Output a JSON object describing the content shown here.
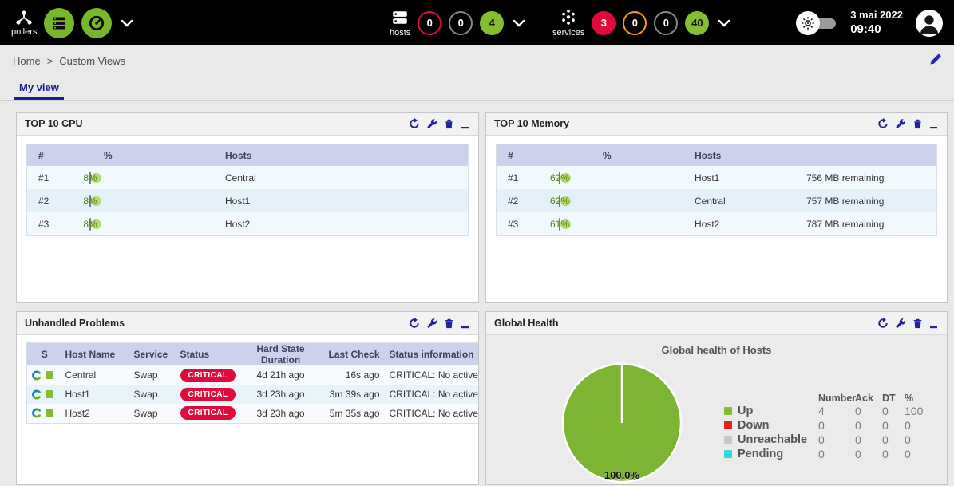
{
  "colors": {
    "green": "#84bd32",
    "pie_green": "#7cb531",
    "light_green": "#b5dc72",
    "red": "#e00b3d",
    "orange": "#ff9a13",
    "navy": "#23229e",
    "cyan": "#33d6da",
    "legend_gray": "#c9c9c9",
    "down_red": "#e01f1f"
  },
  "topbar": {
    "pollers_label": "pollers",
    "hosts_label": "hosts",
    "hosts_badges": [
      {
        "value": "0"
      },
      {
        "value": "0"
      },
      {
        "value": "4"
      }
    ],
    "services_label": "services",
    "services_badges": [
      {
        "value": "3"
      },
      {
        "value": "0"
      },
      {
        "value": "0"
      },
      {
        "value": "40"
      }
    ],
    "date": "3 mai 2022",
    "time": "09:40"
  },
  "breadcrumb": {
    "home": "Home",
    "separator": ">",
    "current": "Custom Views"
  },
  "tab": {
    "label": "My view"
  },
  "cpu": {
    "title": "TOP 10 CPU",
    "col_rank": "#",
    "col_percent": "%",
    "col_hosts": "Hosts",
    "rows": [
      {
        "rank": "#1",
        "percent": 8,
        "percent_label": "8%",
        "host": "Central"
      },
      {
        "rank": "#2",
        "percent": 8,
        "percent_label": "8%",
        "host": "Host1"
      },
      {
        "rank": "#3",
        "percent": 8,
        "percent_label": "8%",
        "host": "Host2"
      }
    ]
  },
  "memory": {
    "title": "TOP 10 Memory",
    "col_rank": "#",
    "col_percent": "%",
    "col_hosts": "Hosts",
    "rows": [
      {
        "rank": "#1",
        "percent": 62,
        "percent_label": "62%",
        "host": "Host1",
        "remaining": "756 MB remaining"
      },
      {
        "rank": "#2",
        "percent": 62,
        "percent_label": "62%",
        "host": "Central",
        "remaining": "757 MB remaining"
      },
      {
        "rank": "#3",
        "percent": 61,
        "percent_label": "61%",
        "host": "Host2",
        "remaining": "787 MB remaining"
      }
    ]
  },
  "problems": {
    "title": "Unhandled Problems",
    "columns": {
      "s": "S",
      "host": "Host Name",
      "service": "Service",
      "status": "Status",
      "duration": "Hard State Duration",
      "last_check": "Last Check",
      "info": "Status information"
    },
    "rows": [
      {
        "host": "Central",
        "service": "Swap",
        "status": "CRITICAL",
        "duration": "4d 21h ago",
        "last_check": "16s ago",
        "info": "CRITICAL: No active swap"
      },
      {
        "host": "Host1",
        "service": "Swap",
        "status": "CRITICAL",
        "duration": "3d 23h ago",
        "last_check": "3m 39s ago",
        "info": "CRITICAL: No active swap"
      },
      {
        "host": "Host2",
        "service": "Swap",
        "status": "CRITICAL",
        "duration": "3d 23h ago",
        "last_check": "5m 35s ago",
        "info": "CRITICAL: No active swap"
      }
    ]
  },
  "health": {
    "title": "Global Health",
    "chart_title": "Global health of Hosts",
    "pie_label": "100.0%",
    "legend_headers": {
      "number": "Number",
      "ack": "Ack",
      "dt": "DT",
      "pct": "%"
    },
    "legend": [
      {
        "label": "Up",
        "color": "#84bd32",
        "number": "4",
        "ack": "0",
        "dt": "0",
        "pct": "100"
      },
      {
        "label": "Down",
        "color": "#e01f1f",
        "number": "0",
        "ack": "0",
        "dt": "0",
        "pct": "0"
      },
      {
        "label": "Unreachable",
        "color": "#c9c9c9",
        "number": "0",
        "ack": "0",
        "dt": "0",
        "pct": "0"
      },
      {
        "label": "Pending",
        "color": "#33d6da",
        "number": "0",
        "ack": "0",
        "dt": "0",
        "pct": "0"
      }
    ]
  },
  "chart_data": {
    "type": "pie",
    "title": "Global health of Hosts",
    "labels": [
      "Up",
      "Down",
      "Unreachable",
      "Pending"
    ],
    "values": [
      100,
      0,
      0,
      0
    ],
    "colors": [
      "#7cb531",
      "#e01f1f",
      "#c9c9c9",
      "#33d6da"
    ],
    "annotation": "100.0%",
    "legend_position": "right",
    "legend_table": {
      "headers": [
        "Number",
        "Ack",
        "DT",
        "%"
      ],
      "rows": [
        [
          4,
          0,
          0,
          100
        ],
        [
          0,
          0,
          0,
          0
        ],
        [
          0,
          0,
          0,
          0
        ],
        [
          0,
          0,
          0,
          0
        ]
      ]
    }
  }
}
